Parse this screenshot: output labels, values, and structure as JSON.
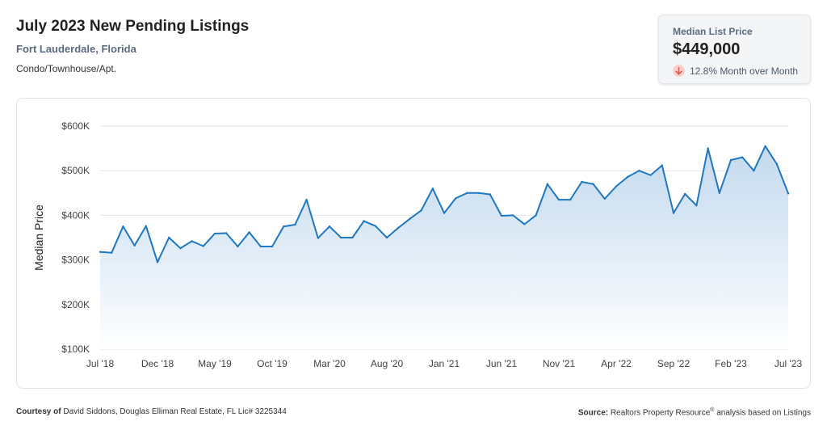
{
  "header": {
    "title": "July 2023 New Pending Listings",
    "location": "Fort Lauderdale, Florida",
    "property_type": "Condo/Townhouse/Apt."
  },
  "stat_card": {
    "label": "Median List Price",
    "value": "$449,000",
    "change_text": "12.8% Month over Month",
    "change_direction": "down",
    "change_icon": "arrow-down-icon"
  },
  "footer": {
    "courtesy_label": "Courtesy of",
    "courtesy_text": "David Siddons, Douglas Elliman Real Estate, FL Lic# 3225344",
    "source_label": "Source:",
    "source_text": "Realtors Property Resource",
    "source_sup": "®",
    "source_suffix": "analysis based on Listings"
  },
  "colors": {
    "line": "#1f78c1",
    "area_top": "#b9d3ec",
    "area_bottom": "#ffffff",
    "grid": "#e3e6ea",
    "down_icon_bg": "#f8cfcb",
    "down_icon_fg": "#d9534f"
  },
  "chart_data": {
    "type": "area",
    "ylabel": "Median Price",
    "xlabel": "",
    "ylim": [
      100000,
      600000
    ],
    "yticks": [
      100000,
      200000,
      300000,
      400000,
      500000,
      600000
    ],
    "ytick_labels": [
      "$100K",
      "$200K",
      "$300K",
      "$400K",
      "$500K",
      "$600K"
    ],
    "x_tick_labels": [
      "Jul '18",
      "Dec '18",
      "May '19",
      "Oct '19",
      "Mar '20",
      "Aug '20",
      "Jan '21",
      "Jun '21",
      "Nov '21",
      "Apr '22",
      "Sep '22",
      "Feb '23",
      "Jul '23"
    ],
    "x_tick_every_months": 5,
    "grid": true,
    "x": [
      "2018-07",
      "2018-08",
      "2018-09",
      "2018-10",
      "2018-11",
      "2018-12",
      "2019-01",
      "2019-02",
      "2019-03",
      "2019-04",
      "2019-05",
      "2019-06",
      "2019-07",
      "2019-08",
      "2019-09",
      "2019-10",
      "2019-11",
      "2019-12",
      "2020-01",
      "2020-02",
      "2020-03",
      "2020-04",
      "2020-05",
      "2020-06",
      "2020-07",
      "2020-08",
      "2020-09",
      "2020-10",
      "2020-11",
      "2020-12",
      "2021-01",
      "2021-02",
      "2021-03",
      "2021-04",
      "2021-05",
      "2021-06",
      "2021-07",
      "2021-08",
      "2021-09",
      "2021-10",
      "2021-11",
      "2021-12",
      "2022-01",
      "2022-02",
      "2022-03",
      "2022-04",
      "2022-05",
      "2022-06",
      "2022-07",
      "2022-08",
      "2022-09",
      "2022-10",
      "2022-11",
      "2022-12",
      "2023-01",
      "2023-02",
      "2023-03",
      "2023-04",
      "2023-05",
      "2023-06",
      "2023-07"
    ],
    "values": [
      318000,
      316000,
      375000,
      332000,
      376000,
      295000,
      350000,
      326000,
      342000,
      331000,
      359000,
      360000,
      330000,
      362000,
      330000,
      330000,
      375000,
      379000,
      435000,
      349000,
      375000,
      350000,
      350000,
      387000,
      376000,
      350000,
      372000,
      392000,
      411000,
      460000,
      405000,
      438000,
      450000,
      450000,
      447000,
      399000,
      400000,
      380000,
      400000,
      470000,
      435000,
      435000,
      475000,
      470000,
      437000,
      465000,
      486000,
      500000,
      490000,
      512000,
      405000,
      448000,
      422000,
      550000,
      450000,
      524000,
      530000,
      500000,
      555000,
      515000,
      449000
    ]
  }
}
